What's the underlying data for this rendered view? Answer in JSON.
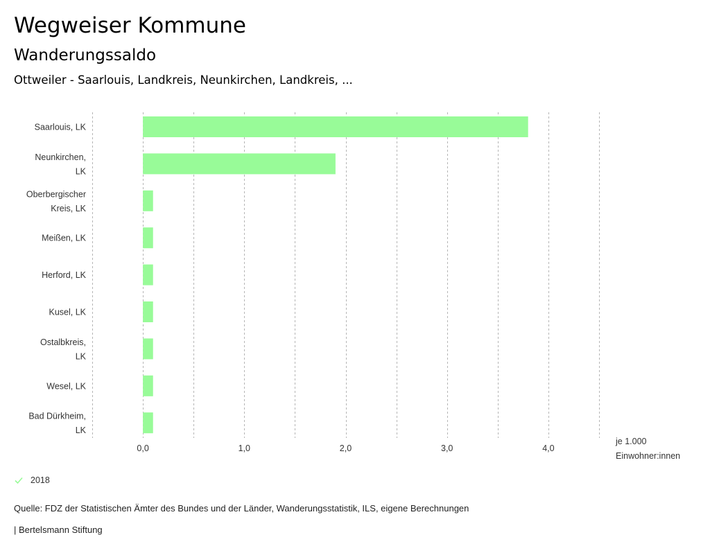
{
  "header": {
    "title": "Wegweiser Kommune",
    "subtitle": "Wanderungssaldo",
    "selection": "Ottweiler - Saarlouis, Landkreis, Neunkirchen, Landkreis, ..."
  },
  "chart_data": {
    "type": "bar",
    "orientation": "horizontal",
    "title": "Wanderungssaldo",
    "xlabel": "je 1.000 Einwohner:innen",
    "unit_lines": [
      "je 1.000",
      "Einwohner:innen"
    ],
    "ylabel": "",
    "categories": [
      [
        "Saarlouis, LK"
      ],
      [
        "Neunkirchen,",
        "LK"
      ],
      [
        "Oberbergischer",
        "Kreis, LK"
      ],
      [
        "Meißen, LK"
      ],
      [
        "Herford, LK"
      ],
      [
        "Kusel, LK"
      ],
      [
        "Ostalbkreis,",
        "LK"
      ],
      [
        "Wesel, LK"
      ],
      [
        "Bad Dürkheim,",
        "LK"
      ]
    ],
    "series": [
      {
        "name": "2018",
        "color": "#98fb98",
        "values": [
          3.8,
          1.9,
          0.1,
          0.1,
          0.1,
          0.1,
          0.1,
          0.1,
          0.1
        ]
      }
    ],
    "xlim": [
      -0.5,
      4.5
    ],
    "gridlines": [
      -0.5,
      0,
      0.5,
      1.0,
      1.5,
      2.0,
      2.5,
      3.0,
      3.5,
      4.0,
      4.5
    ],
    "ticks": [
      {
        "value": 0,
        "label": "0,0"
      },
      {
        "value": 1,
        "label": "1,0"
      },
      {
        "value": 2,
        "label": "2,0"
      },
      {
        "value": 3,
        "label": "3,0"
      },
      {
        "value": 4,
        "label": "4,0"
      }
    ],
    "grid": true,
    "grid_style": "dotted vertical",
    "legend_position": "bottom-left"
  },
  "legend": {
    "items": [
      {
        "label": "2018",
        "color": "#98fb98",
        "icon": "check-icon"
      }
    ]
  },
  "footer": {
    "source": "Quelle: FDZ der Statistischen Ämter des Bundes und der Länder, Wanderungsstatistik, ILS, eigene Berechnungen",
    "credit": "| Bertelsmann Stiftung"
  }
}
